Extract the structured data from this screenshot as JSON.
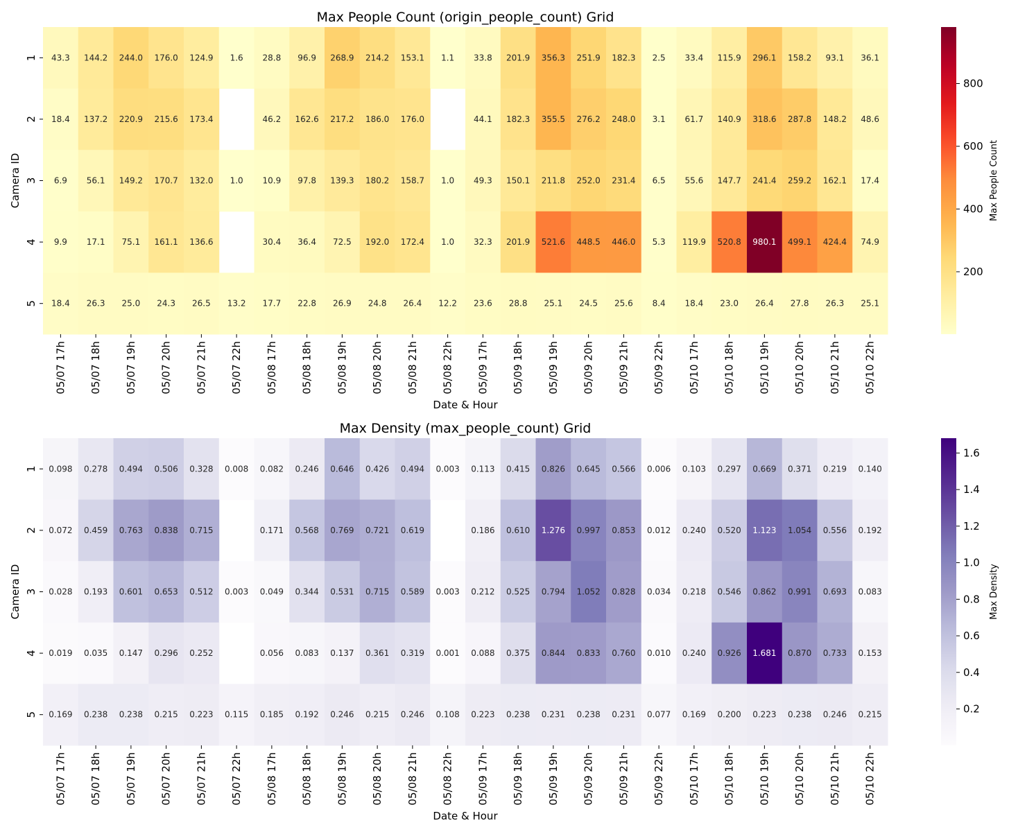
{
  "chart_data": [
    {
      "type": "heatmap",
      "title": "Max People Count (origin_people_count) Grid",
      "xlabel": "Date & Hour",
      "ylabel": "Camera ID",
      "colorbar_label": "Max People Count",
      "colormap": "YlOrRd",
      "value_format": "1",
      "vmin": 1.0,
      "vmax": 980.1,
      "colorbar_ticks": [
        200,
        400,
        600,
        800
      ],
      "x_categories": [
        "05/07 17h",
        "05/07 18h",
        "05/07 19h",
        "05/07 20h",
        "05/07 21h",
        "05/07 22h",
        "05/08 17h",
        "05/08 18h",
        "05/08 19h",
        "05/08 20h",
        "05/08 21h",
        "05/08 22h",
        "05/09 17h",
        "05/09 18h",
        "05/09 19h",
        "05/09 20h",
        "05/09 21h",
        "05/09 22h",
        "05/10 17h",
        "05/10 18h",
        "05/10 19h",
        "05/10 20h",
        "05/10 21h",
        "05/10 22h"
      ],
      "y_categories": [
        "1",
        "2",
        "3",
        "4",
        "5"
      ],
      "values": [
        [
          43.3,
          144.2,
          244.0,
          176.0,
          124.9,
          1.6,
          28.8,
          96.9,
          268.9,
          214.2,
          153.1,
          1.1,
          33.8,
          201.9,
          356.3,
          251.9,
          182.3,
          2.5,
          33.4,
          115.9,
          296.1,
          158.2,
          93.1,
          36.1
        ],
        [
          18.4,
          137.2,
          220.9,
          215.6,
          173.4,
          null,
          46.2,
          162.6,
          217.2,
          186.0,
          176.0,
          null,
          44.1,
          182.3,
          355.5,
          276.2,
          248.0,
          3.1,
          61.7,
          140.9,
          318.6,
          287.8,
          148.2,
          48.6
        ],
        [
          6.9,
          56.1,
          149.2,
          170.7,
          132.0,
          1.0,
          10.9,
          97.8,
          139.3,
          180.2,
          158.7,
          1.0,
          49.3,
          150.1,
          211.8,
          252.0,
          231.4,
          6.5,
          55.6,
          147.7,
          241.4,
          259.2,
          162.1,
          17.4
        ],
        [
          9.9,
          17.1,
          75.1,
          161.1,
          136.6,
          null,
          30.4,
          36.4,
          72.5,
          192.0,
          172.4,
          1.0,
          32.3,
          201.9,
          521.6,
          448.5,
          446.0,
          5.3,
          119.9,
          520.8,
          980.1,
          499.1,
          424.4,
          74.9
        ],
        [
          18.4,
          26.3,
          25.0,
          24.3,
          26.5,
          13.2,
          17.7,
          22.8,
          26.9,
          24.8,
          26.4,
          12.2,
          23.6,
          28.8,
          25.1,
          24.5,
          25.6,
          8.4,
          18.4,
          23.0,
          26.4,
          27.8,
          26.3,
          25.1
        ]
      ]
    },
    {
      "type": "heatmap",
      "title": "Max Density (max_people_count) Grid",
      "xlabel": "Date & Hour",
      "ylabel": "Camera ID",
      "colorbar_label": "Max Density",
      "colormap": "Purples",
      "value_format": "3",
      "vmin": 0.001,
      "vmax": 1.681,
      "colorbar_ticks": [
        0.2,
        0.4,
        0.6,
        0.8,
        1.0,
        1.2,
        1.4,
        1.6
      ],
      "x_categories": [
        "05/07 17h",
        "05/07 18h",
        "05/07 19h",
        "05/07 20h",
        "05/07 21h",
        "05/07 22h",
        "05/08 17h",
        "05/08 18h",
        "05/08 19h",
        "05/08 20h",
        "05/08 21h",
        "05/08 22h",
        "05/09 17h",
        "05/09 18h",
        "05/09 19h",
        "05/09 20h",
        "05/09 21h",
        "05/09 22h",
        "05/10 17h",
        "05/10 18h",
        "05/10 19h",
        "05/10 20h",
        "05/10 21h",
        "05/10 22h"
      ],
      "y_categories": [
        "1",
        "2",
        "3",
        "4",
        "5"
      ],
      "values": [
        [
          0.098,
          0.278,
          0.494,
          0.506,
          0.328,
          0.008,
          0.082,
          0.246,
          0.646,
          0.426,
          0.494,
          0.003,
          0.113,
          0.415,
          0.826,
          0.645,
          0.566,
          0.006,
          0.103,
          0.297,
          0.669,
          0.371,
          0.219,
          0.14
        ],
        [
          0.072,
          0.459,
          0.763,
          0.838,
          0.715,
          null,
          0.171,
          0.568,
          0.769,
          0.721,
          0.619,
          null,
          0.186,
          0.61,
          1.276,
          0.997,
          0.853,
          0.012,
          0.24,
          0.52,
          1.123,
          1.054,
          0.556,
          0.192
        ],
        [
          0.028,
          0.193,
          0.601,
          0.653,
          0.512,
          0.003,
          0.049,
          0.344,
          0.531,
          0.715,
          0.589,
          0.003,
          0.212,
          0.525,
          0.794,
          1.052,
          0.828,
          0.034,
          0.218,
          0.546,
          0.862,
          0.991,
          0.693,
          0.083
        ],
        [
          0.019,
          0.035,
          0.147,
          0.296,
          0.252,
          null,
          0.056,
          0.083,
          0.137,
          0.361,
          0.319,
          0.001,
          0.088,
          0.375,
          0.844,
          0.833,
          0.76,
          0.01,
          0.24,
          0.926,
          1.681,
          0.87,
          0.733,
          0.153
        ],
        [
          0.169,
          0.238,
          0.238,
          0.215,
          0.223,
          0.115,
          0.185,
          0.192,
          0.246,
          0.215,
          0.246,
          0.108,
          0.223,
          0.238,
          0.231,
          0.238,
          0.231,
          0.077,
          0.169,
          0.2,
          0.223,
          0.238,
          0.246,
          0.215
        ]
      ]
    }
  ]
}
